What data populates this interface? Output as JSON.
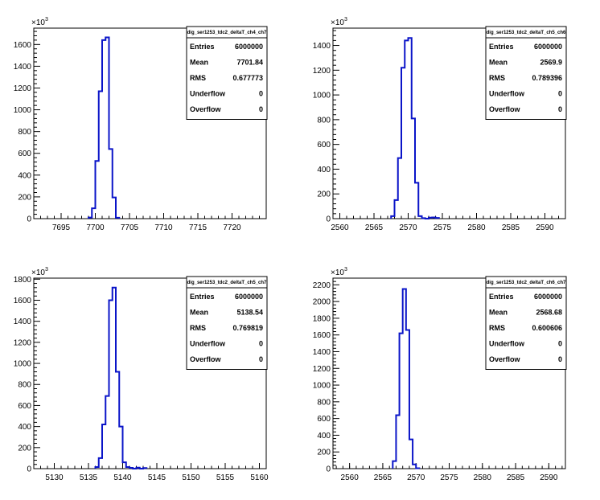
{
  "chart_data": [
    {
      "type": "bar",
      "title": "dig_ser1253_tdc2_deltaT_ch4_ch7",
      "y_scale_label": "×10",
      "y_scale_exponent": "3",
      "xlim": [
        7691,
        7725
      ],
      "ylim": [
        0,
        1750
      ],
      "x_ticks": [
        7695,
        7700,
        7705,
        7710,
        7715,
        7720
      ],
      "y_ticks": [
        0,
        200,
        400,
        600,
        800,
        1000,
        1200,
        1400,
        1600
      ],
      "bin_width": 0.5,
      "bins": [
        {
          "x": 7699.0,
          "y": 10
        },
        {
          "x": 7699.5,
          "y": 95
        },
        {
          "x": 7700.0,
          "y": 530
        },
        {
          "x": 7700.5,
          "y": 1170
        },
        {
          "x": 7701.0,
          "y": 1640
        },
        {
          "x": 7701.5,
          "y": 1665
        },
        {
          "x": 7702.0,
          "y": 640
        },
        {
          "x": 7702.5,
          "y": 195
        },
        {
          "x": 7703.0,
          "y": 8
        }
      ],
      "stats": [
        {
          "label": "Entries",
          "value": "6000000"
        },
        {
          "label": "Mean",
          "value": "7701.84"
        },
        {
          "label": "RMS",
          "value": "0.677773"
        },
        {
          "label": "Underflow",
          "value": "0"
        },
        {
          "label": "Overflow",
          "value": "0"
        }
      ]
    },
    {
      "type": "bar",
      "title": "dig_ser1253_tdc2_deltaT_ch5_ch6",
      "y_scale_label": "×10",
      "y_scale_exponent": "3",
      "xlim": [
        2559,
        2593
      ],
      "ylim": [
        0,
        1540
      ],
      "x_ticks": [
        2560,
        2565,
        2570,
        2575,
        2580,
        2585,
        2590
      ],
      "y_ticks": [
        0,
        200,
        400,
        600,
        800,
        1000,
        1200,
        1400
      ],
      "bin_width": 0.5,
      "bins": [
        {
          "x": 2567.5,
          "y": 20
        },
        {
          "x": 2568.0,
          "y": 150
        },
        {
          "x": 2568.5,
          "y": 490
        },
        {
          "x": 2569.0,
          "y": 1220
        },
        {
          "x": 2569.5,
          "y": 1440
        },
        {
          "x": 2570.0,
          "y": 1460
        },
        {
          "x": 2570.5,
          "y": 810
        },
        {
          "x": 2571.0,
          "y": 290
        },
        {
          "x": 2571.5,
          "y": 20
        },
        {
          "x": 2572.0,
          "y": 4
        },
        {
          "x": 2573.0,
          "y": 8
        },
        {
          "x": 2573.5,
          "y": 10
        },
        {
          "x": 2574.0,
          "y": 6
        }
      ],
      "stats": [
        {
          "label": "Entries",
          "value": "6000000"
        },
        {
          "label": "Mean",
          "value": "2569.9"
        },
        {
          "label": "RMS",
          "value": "0.789396"
        },
        {
          "label": "Underflow",
          "value": "0"
        },
        {
          "label": "Overflow",
          "value": "0"
        }
      ]
    },
    {
      "type": "bar",
      "title": "dig_ser1253_tdc2_deltaT_ch5_ch7",
      "y_scale_label": "×10",
      "y_scale_exponent": "3",
      "xlim": [
        5127,
        5161
      ],
      "ylim": [
        0,
        1810
      ],
      "x_ticks": [
        5130,
        5135,
        5140,
        5145,
        5150,
        5155,
        5160
      ],
      "y_ticks": [
        0,
        200,
        400,
        600,
        800,
        1000,
        1200,
        1400,
        1600,
        1800
      ],
      "bin_width": 0.5,
      "bins": [
        {
          "x": 5136.0,
          "y": 15
        },
        {
          "x": 5136.5,
          "y": 100
        },
        {
          "x": 5137.0,
          "y": 420
        },
        {
          "x": 5137.5,
          "y": 690
        },
        {
          "x": 5138.0,
          "y": 1600
        },
        {
          "x": 5138.5,
          "y": 1720
        },
        {
          "x": 5139.0,
          "y": 920
        },
        {
          "x": 5139.5,
          "y": 400
        },
        {
          "x": 5140.0,
          "y": 60
        },
        {
          "x": 5140.5,
          "y": 15
        },
        {
          "x": 5141.0,
          "y": 8
        },
        {
          "x": 5142.0,
          "y": 10
        },
        {
          "x": 5143.0,
          "y": 6
        }
      ],
      "stats": [
        {
          "label": "Entries",
          "value": "6000000"
        },
        {
          "label": "Mean",
          "value": "5138.54"
        },
        {
          "label": "RMS",
          "value": "0.769819"
        },
        {
          "label": "Underflow",
          "value": "0"
        },
        {
          "label": "Overflow",
          "value": "0"
        }
      ]
    },
    {
      "type": "bar",
      "title": "dig_ser1253_tdc2_deltaT_ch6_ch7",
      "y_scale_label": "×10",
      "y_scale_exponent": "3",
      "xlim": [
        2557.5,
        2592.5
      ],
      "ylim": [
        0,
        2280
      ],
      "x_ticks": [
        2560,
        2565,
        2570,
        2575,
        2580,
        2585,
        2590
      ],
      "y_ticks": [
        0,
        200,
        400,
        600,
        800,
        1000,
        1200,
        1400,
        1600,
        1800,
        2000,
        2200
      ],
      "bin_width": 0.5,
      "bins": [
        {
          "x": 2566.5,
          "y": 90
        },
        {
          "x": 2567.0,
          "y": 640
        },
        {
          "x": 2567.5,
          "y": 1620
        },
        {
          "x": 2568.0,
          "y": 2150
        },
        {
          "x": 2568.5,
          "y": 1660
        },
        {
          "x": 2569.0,
          "y": 350
        },
        {
          "x": 2569.5,
          "y": 50
        },
        {
          "x": 2570.0,
          "y": 5
        }
      ],
      "stats": [
        {
          "label": "Entries",
          "value": "6000000"
        },
        {
          "label": "Mean",
          "value": "2568.68"
        },
        {
          "label": "RMS",
          "value": "0.600606"
        },
        {
          "label": "Underflow",
          "value": "0"
        },
        {
          "label": "Overflow",
          "value": "0"
        }
      ]
    }
  ],
  "colors": {
    "histogram_line": "#0a14c8",
    "axis": "#000000",
    "background": "#ffffff"
  }
}
